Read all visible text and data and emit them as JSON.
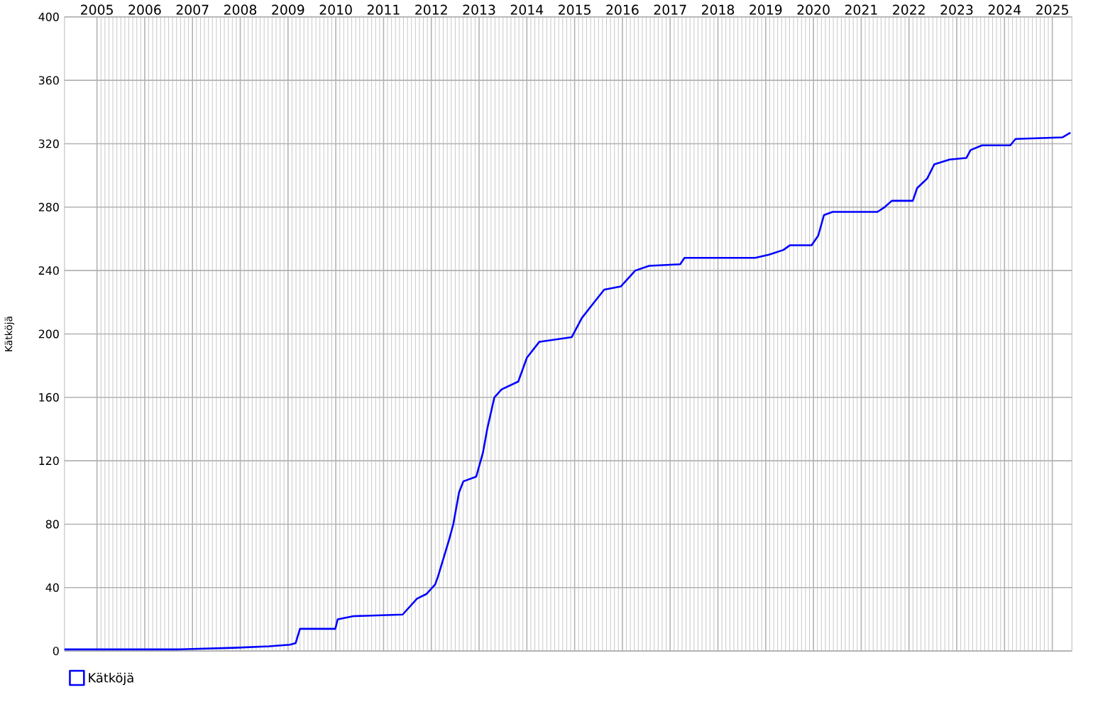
{
  "chart_data": {
    "type": "line",
    "ylabel": "Kätköjä",
    "x": [
      2004.32,
      2005.5,
      2006.68,
      2007.86,
      2008.6,
      2009.04,
      2009.16,
      2009.25,
      2009.99,
      2010.04,
      2010.37,
      2011.4,
      2011.55,
      2011.7,
      2011.9,
      2012.08,
      2012.14,
      2012.29,
      2012.37,
      2012.46,
      2012.58,
      2012.67,
      2012.94,
      2013.08,
      2013.17,
      2013.32,
      2013.47,
      2013.82,
      2014.0,
      2014.26,
      2014.94,
      2015.15,
      2015.41,
      2015.62,
      2015.97,
      2016.27,
      2016.56,
      2017.21,
      2017.3,
      2018.78,
      2019.07,
      2019.37,
      2019.51,
      2019.96,
      2020.1,
      2020.22,
      2020.4,
      2021.34,
      2021.49,
      2021.64,
      2022.08,
      2022.17,
      2022.38,
      2022.53,
      2022.85,
      2023.2,
      2023.29,
      2023.53,
      2024.12,
      2024.23,
      2025.21,
      2025.38
    ],
    "series": [
      {
        "name": "Kätköjä",
        "color": "#0000ff",
        "values": [
          1,
          1,
          1,
          2,
          3,
          4,
          5,
          14,
          14,
          20,
          22,
          23,
          28,
          33,
          36,
          42,
          47,
          62,
          70,
          80,
          100,
          107,
          110,
          125,
          140,
          160,
          165,
          170,
          185,
          195,
          198,
          210,
          220,
          228,
          230,
          240,
          243,
          244,
          248,
          248,
          250,
          253,
          256,
          256,
          262,
          275,
          277,
          277,
          280,
          284,
          284,
          292,
          298,
          307,
          310,
          311,
          316,
          319,
          319,
          323,
          324,
          327
        ]
      }
    ],
    "xlim": [
      2004.32,
      2025.41
    ],
    "ylim": [
      0,
      400
    ],
    "xticks": [
      2005,
      2006,
      2007,
      2008,
      2009,
      2010,
      2011,
      2012,
      2013,
      2014,
      2015,
      2016,
      2017,
      2018,
      2019,
      2020,
      2021,
      2022,
      2023,
      2024,
      2025
    ],
    "yticks": [
      0,
      40,
      80,
      120,
      160,
      200,
      240,
      280,
      320,
      360,
      400
    ],
    "grid": true,
    "legend": "bottom left",
    "marker": "none"
  }
}
